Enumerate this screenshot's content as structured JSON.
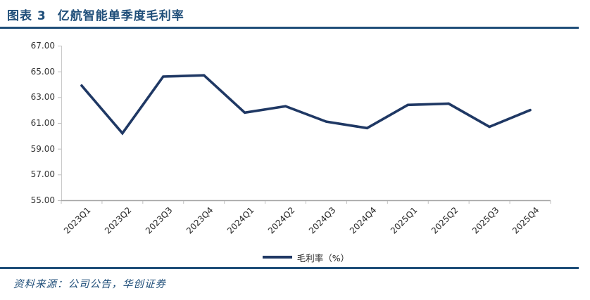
{
  "figure": {
    "label": "图表 3",
    "title": "亿航智能单季度毛利率",
    "source_note": "资料来源：公司公告，华创证券"
  },
  "legend": {
    "label": "毛利率（%）"
  },
  "colors": {
    "accent_navy": "#1F4E79",
    "series_line": "#1F3864",
    "y_axis_gray": "#C9C9C9",
    "x_axis_gray": "#A6A6A6",
    "tick_gray": "#BFBFBF",
    "tick_text": "#333333"
  },
  "chart_data": {
    "type": "line",
    "title": "亿航智能单季度毛利率",
    "categories": [
      "2023Q1",
      "2023Q2",
      "2023Q3",
      "2023Q4",
      "2024Q1",
      "2024Q2",
      "2024Q3",
      "2024Q4",
      "2025Q1",
      "2025Q2",
      "2025Q3",
      "2025Q4"
    ],
    "series": [
      {
        "name": "毛利率（%）",
        "color": "#1F3864",
        "values": [
          63.9,
          60.2,
          64.6,
          64.7,
          61.8,
          62.3,
          61.1,
          60.6,
          62.4,
          62.5,
          60.7,
          62.0
        ]
      }
    ],
    "xlabel": "",
    "ylabel": "",
    "ylim": [
      55,
      67
    ],
    "y_ticks": [
      "55.00",
      "57.00",
      "59.00",
      "61.00",
      "63.00",
      "65.00",
      "67.00"
    ],
    "grid": false,
    "legend_position": "bottom"
  }
}
